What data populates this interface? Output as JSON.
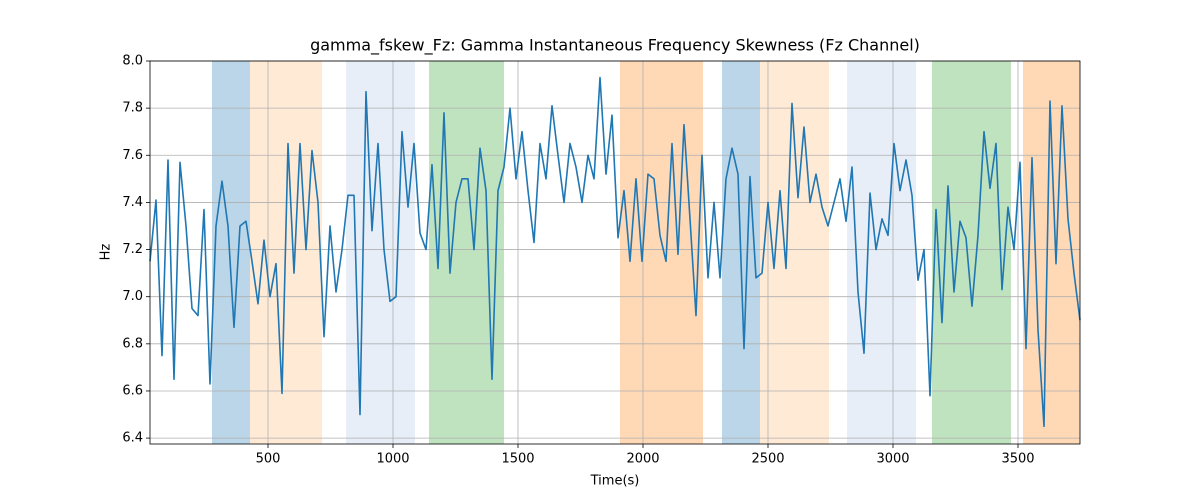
{
  "chart_data": {
    "type": "line",
    "title": "gamma_fskew_Fz: Gamma Instantaneous Frequency Skewness (Fz Channel)",
    "x_label": "Time(s)",
    "y_label": "Hz",
    "xlim": [
      28,
      3748
    ],
    "ylim": [
      6.375,
      8.0
    ],
    "xticks": [
      500,
      1000,
      1500,
      2000,
      2500,
      3000,
      3500
    ],
    "yticks": [
      6.4,
      6.6,
      6.8,
      {
        "value": 7,
        "label": "7.0"
      },
      7.2,
      7.4,
      7.6,
      7.8,
      {
        "value": 8,
        "label": "8.0"
      }
    ],
    "grid": true,
    "spans": [
      {
        "start": 276,
        "end": 428,
        "color": "#1f77b4"
      },
      {
        "start": 428,
        "end": 716,
        "color": "#ffbb78"
      },
      {
        "start": 812,
        "end": 1088,
        "color": "#aec7e8"
      },
      {
        "start": 1144,
        "end": 1444,
        "color": "#2ca02c"
      },
      {
        "start": 1908,
        "end": 2240,
        "color": "#ff7f0e"
      },
      {
        "start": 2316,
        "end": 2468,
        "color": "#1f77b4"
      },
      {
        "start": 2468,
        "end": 2744,
        "color": "#ffbb78"
      },
      {
        "start": 2816,
        "end": 3092,
        "color": "#aec7e8"
      },
      {
        "start": 3156,
        "end": 3472,
        "color": "#2ca02c"
      },
      {
        "start": 3520,
        "end": 3748,
        "color": "#ff7f0e"
      }
    ],
    "x": [
      28,
      52,
      76,
      100,
      124,
      148,
      172,
      196,
      220,
      244,
      268,
      292,
      316,
      340,
      364,
      388,
      412,
      436,
      460,
      484,
      508,
      532,
      556,
      580,
      604,
      628,
      652,
      676,
      700,
      724,
      748,
      772,
      796,
      820,
      844,
      868,
      892,
      916,
      940,
      964,
      988,
      1012,
      1036,
      1060,
      1084,
      1108,
      1132,
      1156,
      1180,
      1204,
      1228,
      1252,
      1276,
      1300,
      1324,
      1348,
      1372,
      1396,
      1420,
      1444,
      1468,
      1492,
      1516,
      1540,
      1564,
      1588,
      1612,
      1636,
      1660,
      1684,
      1708,
      1732,
      1756,
      1780,
      1804,
      1828,
      1852,
      1876,
      1900,
      1924,
      1948,
      1972,
      1996,
      2020,
      2044,
      2068,
      2092,
      2116,
      2140,
      2164,
      2188,
      2212,
      2236,
      2260,
      2284,
      2308,
      2332,
      2356,
      2380,
      2404,
      2428,
      2452,
      2476,
      2500,
      2524,
      2548,
      2572,
      2596,
      2620,
      2644,
      2668,
      2692,
      2716,
      2740,
      2764,
      2788,
      2812,
      2836,
      2860,
      2884,
      2908,
      2932,
      2956,
      2980,
      3004,
      3028,
      3052,
      3076,
      3100,
      3124,
      3148,
      3172,
      3196,
      3220,
      3244,
      3268,
      3292,
      3316,
      3340,
      3364,
      3388,
      3412,
      3436,
      3460,
      3484,
      3508,
      3532,
      3556,
      3580,
      3604,
      3628,
      3652,
      3676,
      3700,
      3724,
      3748
    ],
    "series": [
      {
        "color": "#1f77b4",
        "values": [
          7.15,
          7.41,
          6.75,
          7.58,
          6.65,
          7.57,
          7.3,
          6.95,
          6.92,
          7.37,
          6.63,
          7.3,
          7.49,
          7.3,
          6.87,
          7.3,
          7.32,
          7.15,
          6.97,
          7.24,
          7.0,
          7.14,
          6.59,
          7.65,
          7.1,
          7.65,
          7.2,
          7.62,
          7.4,
          6.83,
          7.3,
          7.02,
          7.2,
          7.43,
          7.43,
          6.5,
          7.87,
          7.28,
          7.65,
          7.2,
          6.98,
          7.0,
          7.7,
          7.38,
          7.65,
          7.27,
          7.2,
          7.56,
          7.12,
          7.78,
          7.1,
          7.4,
          7.5,
          7.5,
          7.2,
          7.63,
          7.45,
          6.65,
          7.45,
          7.55,
          7.8,
          7.5,
          7.7,
          7.45,
          7.23,
          7.65,
          7.5,
          7.81,
          7.6,
          7.4,
          7.65,
          7.55,
          7.4,
          7.6,
          7.5,
          7.93,
          7.52,
          7.77,
          7.25,
          7.45,
          7.15,
          7.5,
          7.15,
          7.52,
          7.5,
          7.26,
          7.15,
          7.65,
          7.18,
          7.73,
          7.33,
          6.92,
          7.6,
          7.08,
          7.4,
          7.08,
          7.5,
          7.63,
          7.52,
          6.78,
          7.51,
          7.08,
          7.1,
          7.4,
          7.12,
          7.45,
          7.12,
          7.82,
          7.42,
          7.72,
          7.4,
          7.52,
          7.38,
          7.3,
          7.4,
          7.5,
          7.32,
          7.55,
          7.02,
          6.76,
          7.44,
          7.2,
          7.33,
          7.26,
          7.65,
          7.45,
          7.58,
          7.43,
          7.07,
          7.2,
          6.58,
          7.37,
          6.89,
          7.47,
          7.02,
          7.32,
          7.25,
          6.96,
          7.26,
          7.7,
          7.46,
          7.65,
          7.03,
          7.38,
          7.2,
          7.57,
          6.78,
          7.59,
          6.86,
          6.45,
          7.83,
          7.14,
          7.81,
          7.33,
          7.1,
          6.9
        ]
      }
    ]
  }
}
